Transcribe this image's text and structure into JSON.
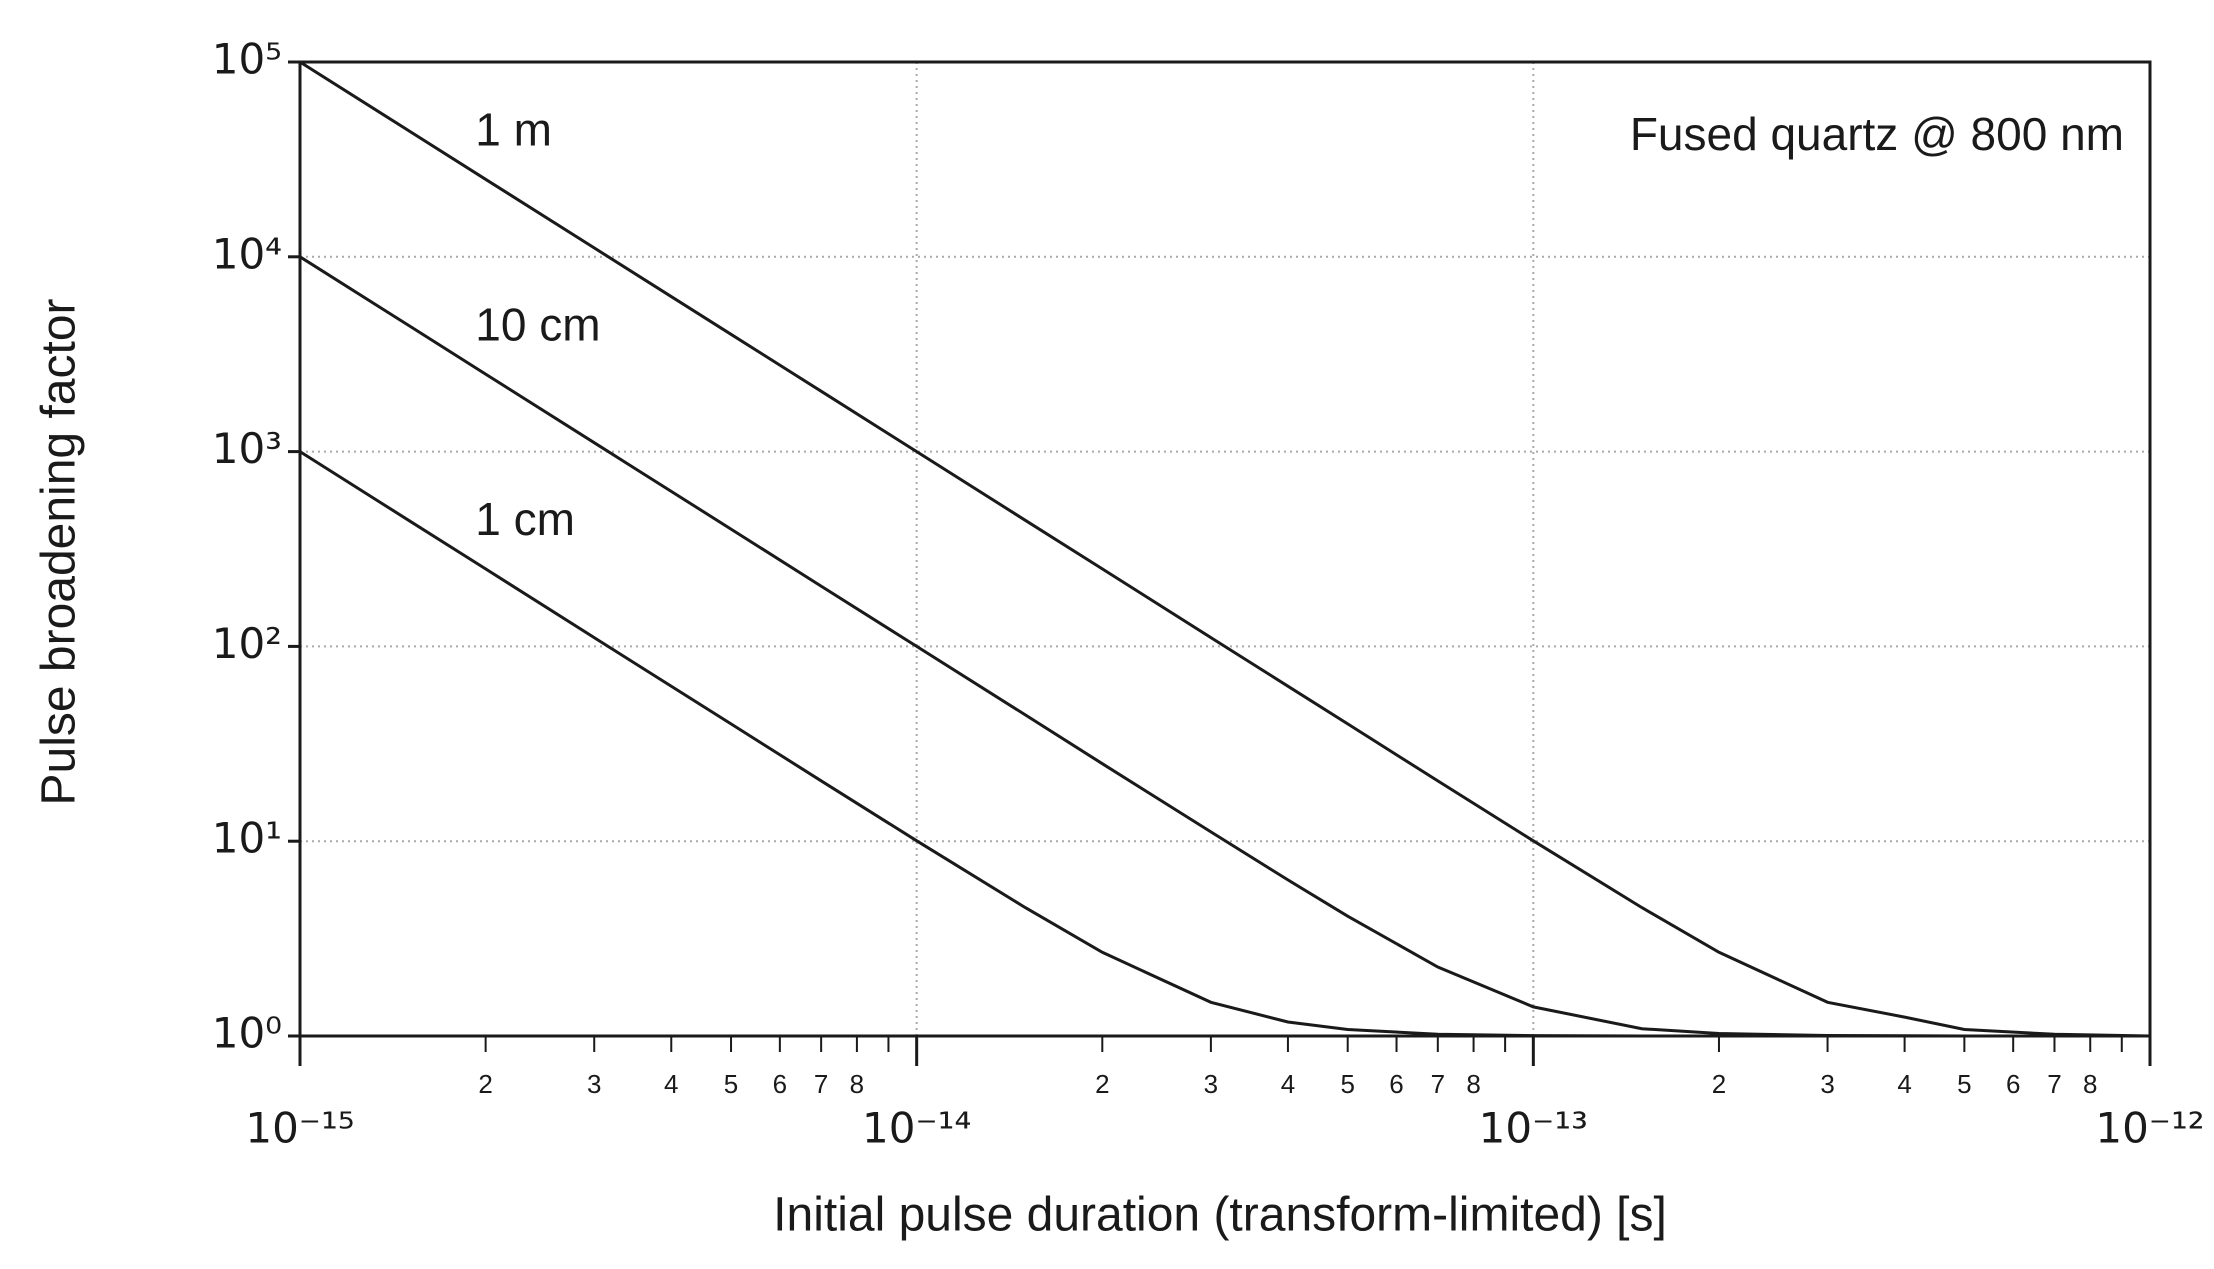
{
  "chart_data": {
    "type": "line",
    "xlabel": "Initial pulse duration (transform-limited) [s]",
    "ylabel": "Pulse broadening factor",
    "annotation": "Fused quartz @ 800 nm",
    "log_x": true,
    "log_y": true,
    "grid": true,
    "x": [
      1e-15,
      1.5e-15,
      2e-15,
      3e-15,
      5e-15,
      7e-15,
      1e-14,
      1.5e-14,
      2e-14,
      3e-14,
      4e-14,
      5e-14,
      7e-14,
      1e-13,
      1.5e-13,
      2e-13,
      3e-13,
      4e-13,
      5e-13,
      7e-13,
      1e-12
    ],
    "series": [
      {
        "name": "1 m",
        "color": "#1a1a1a",
        "values": [
          100000,
          44444,
          25000,
          11111,
          4000,
          2041,
          1000,
          444,
          250,
          111,
          62.5,
          40,
          20.4,
          10.05,
          4.56,
          2.69,
          1.49,
          1.25,
          1.08,
          1.02,
          1.0
        ]
      },
      {
        "name": "10 cm",
        "color": "#1a1a1a",
        "values": [
          10000,
          4444,
          2500,
          1111,
          400,
          204,
          100,
          44.5,
          25.0,
          11.16,
          6.33,
          4.12,
          2.26,
          1.41,
          1.09,
          1.03,
          1.006,
          1.002,
          1.0,
          1.0,
          1.0
        ]
      },
      {
        "name": "1 cm",
        "color": "#1a1a1a",
        "values": [
          1000,
          444,
          250,
          111,
          40.0,
          20.43,
          10.05,
          4.56,
          2.69,
          1.49,
          1.18,
          1.08,
          1.02,
          1.005,
          1.0,
          1.0,
          1.0,
          1.0,
          1.0,
          1.0,
          1.0
        ]
      }
    ],
    "xlim": [
      1e-15,
      1e-12
    ],
    "ylim": [
      1,
      100000
    ],
    "xticks": [
      {
        "value": 1e-15,
        "label": "10⁻¹⁵"
      },
      {
        "value": 1e-14,
        "label": "10⁻¹⁴"
      },
      {
        "value": 1e-13,
        "label": "10⁻¹³"
      },
      {
        "value": 1e-12,
        "label": "10⁻¹²"
      }
    ],
    "xminor_ticks": [
      {
        "value": 2e-15,
        "label": "2"
      },
      {
        "value": 3e-15,
        "label": "3"
      },
      {
        "value": 4e-15,
        "label": "4"
      },
      {
        "value": 5e-15,
        "label": "5"
      },
      {
        "value": 6e-15,
        "label": "6"
      },
      {
        "value": 7e-15,
        "label": "7"
      },
      {
        "value": 8e-15,
        "label": "8"
      },
      {
        "value": 9e-15,
        "label": null
      },
      {
        "value": 2e-14,
        "label": "2"
      },
      {
        "value": 3e-14,
        "label": "3"
      },
      {
        "value": 4e-14,
        "label": "4"
      },
      {
        "value": 5e-14,
        "label": "5"
      },
      {
        "value": 6e-14,
        "label": "6"
      },
      {
        "value": 7e-14,
        "label": "7"
      },
      {
        "value": 8e-14,
        "label": "8"
      },
      {
        "value": 9e-14,
        "label": null
      },
      {
        "value": 2e-13,
        "label": "2"
      },
      {
        "value": 3e-13,
        "label": "3"
      },
      {
        "value": 4e-13,
        "label": "4"
      },
      {
        "value": 5e-13,
        "label": "5"
      },
      {
        "value": 6e-13,
        "label": "6"
      },
      {
        "value": 7e-13,
        "label": "7"
      },
      {
        "value": 8e-13,
        "label": "8"
      },
      {
        "value": 9e-13,
        "label": null
      }
    ],
    "yticks": [
      {
        "value": 1,
        "label": "10⁰"
      },
      {
        "value": 10,
        "label": "10¹"
      },
      {
        "value": 100,
        "label": "10²"
      },
      {
        "value": 1000,
        "label": "10³"
      },
      {
        "value": 10000,
        "label": "10⁴"
      },
      {
        "value": 100000,
        "label": "10⁵"
      }
    ]
  }
}
